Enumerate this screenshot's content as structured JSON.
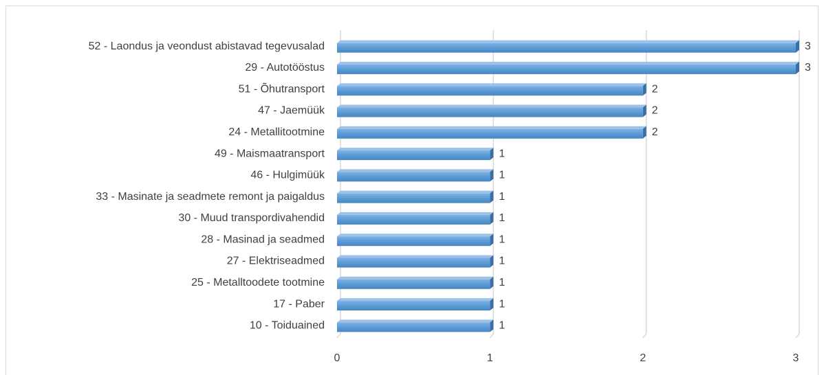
{
  "chart_data": {
    "type": "bar",
    "orientation": "horizontal",
    "categories": [
      "52 - Laondus ja veondust abistavad tegevusalad",
      "29 - Autotööstus",
      "51 - Õhutransport",
      "47 - Jaemüük",
      "24 - Metallitootmine",
      "49 - Maismaatransport",
      "46 - Hulgimüük",
      "33 - Masinate ja seadmete remont ja paigaldus",
      "30 - Muud transpordivahendid",
      "28 - Masinad ja seadmed",
      "27 - Elektriseadmed",
      "25 - Metalltoodete tootmine",
      "17 - Paber",
      "10 - Toiduained"
    ],
    "values": [
      3,
      3,
      2,
      2,
      2,
      1,
      1,
      1,
      1,
      1,
      1,
      1,
      1,
      1
    ],
    "color": "#5b9bd5",
    "xlim": [
      0,
      3
    ],
    "xticks": [
      0,
      1,
      2,
      3
    ],
    "grid": true
  }
}
